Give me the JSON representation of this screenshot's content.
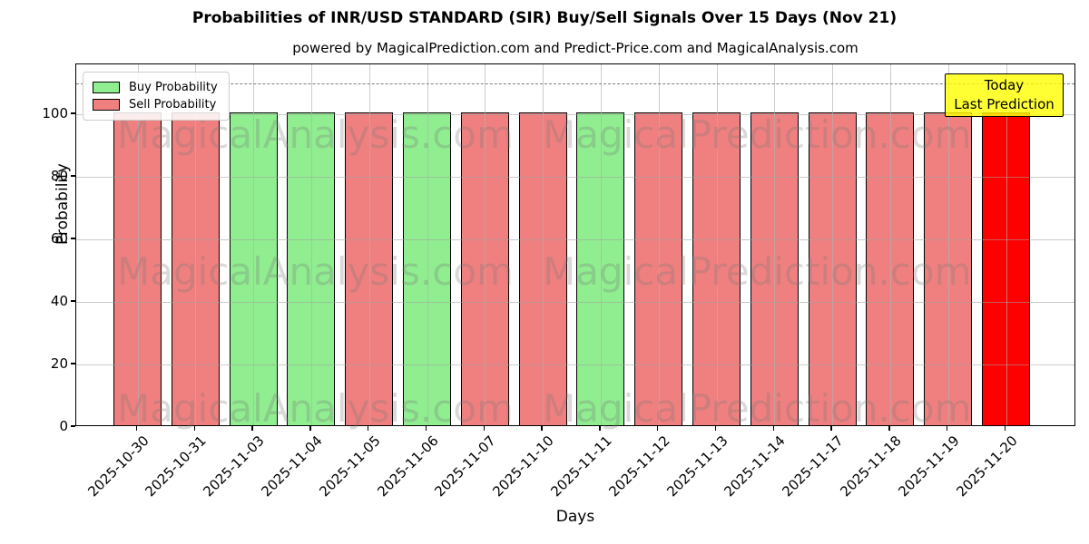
{
  "chart_data": {
    "type": "bar",
    "title": "Probabilities of INR/USD STANDARD (SIR) Buy/Sell Signals Over 15 Days (Nov 21)",
    "subtitle": "powered by MagicalPrediction.com and Predict-Price.com and MagicalAnalysis.com",
    "xlabel": "Days",
    "ylabel": "Probability",
    "ylim": [
      0,
      116
    ],
    "yticks": [
      0,
      20,
      40,
      60,
      80,
      100
    ],
    "grid": true,
    "dashed_guide_y": 110,
    "legend_position": "upper-left",
    "legend": [
      {
        "name": "Buy Probability",
        "color": "#90EE90"
      },
      {
        "name": "Sell Probability",
        "color": "#F08080"
      }
    ],
    "categories": [
      "2025-10-30",
      "2025-10-31",
      "2025-11-03",
      "2025-11-04",
      "2025-11-05",
      "2025-11-06",
      "2025-11-07",
      "2025-11-10",
      "2025-11-11",
      "2025-11-12",
      "2025-11-13",
      "2025-11-14",
      "2025-11-17",
      "2025-11-18",
      "2025-11-19",
      "2025-11-20"
    ],
    "series": [
      {
        "name": "Probability",
        "values": [
          100,
          100,
          100,
          100,
          100,
          100,
          100,
          100,
          100,
          100,
          100,
          100,
          100,
          100,
          100,
          100
        ]
      }
    ],
    "bar_signals": [
      "sell",
      "sell",
      "buy",
      "buy",
      "sell",
      "buy",
      "sell",
      "sell",
      "buy",
      "sell",
      "sell",
      "sell",
      "sell",
      "sell",
      "sell",
      "today"
    ],
    "colors": {
      "buy": "#90EE90",
      "sell": "#F08080",
      "today": "#FF0000",
      "bar_edge": "#000000",
      "grid": "#b0b0b0",
      "dashed_guide": "#7f7f7f",
      "annotation_bg": "#FFFF00"
    },
    "annotation": {
      "lines": [
        "Today",
        "Last Prediction"
      ]
    },
    "watermarks": [
      "MagicalAnalysis.com",
      "MagicalPrediction.com"
    ]
  }
}
